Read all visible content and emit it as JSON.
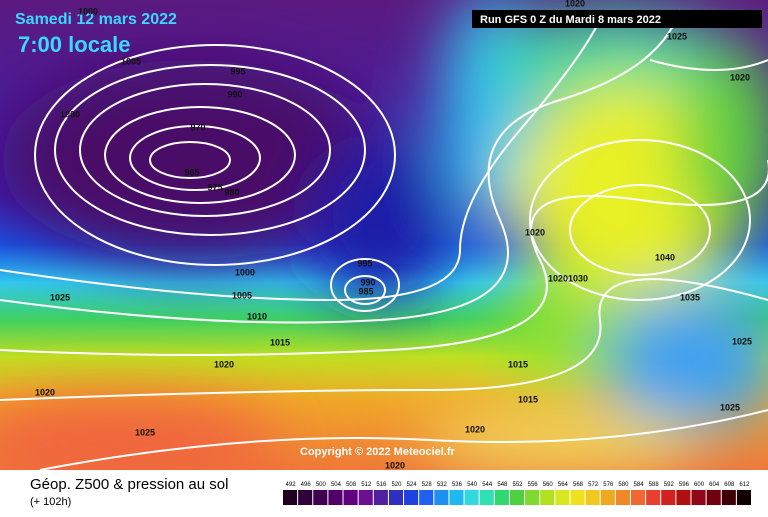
{
  "header": {
    "date": "Samedi 12 mars 2022",
    "time": "7:00 locale",
    "run": "Run GFS 0 Z du Mardi 8 mars 2022"
  },
  "copyright": "Copyright © 2022 Meteociel.fr",
  "footer": {
    "title": "Géop. Z500 & pression au sol",
    "lead": "(+ 102h)"
  },
  "legend": {
    "labels": [
      "492",
      "496",
      "500",
      "504",
      "508",
      "512",
      "516",
      "520",
      "524",
      "528",
      "532",
      "536",
      "540",
      "544",
      "548",
      "552",
      "556",
      "560",
      "564",
      "568",
      "572",
      "576",
      "580",
      "584",
      "588",
      "592",
      "596",
      "600",
      "604",
      "608",
      "612"
    ]
  },
  "isobars": {
    "labels": [
      "1000",
      "1005",
      "1000",
      "995",
      "990",
      "970",
      "965",
      "975",
      "980",
      "1000",
      "1005",
      "1010",
      "1015",
      "1020",
      "1020",
      "1025",
      "1025",
      "995",
      "990",
      "985",
      "1020",
      "1020",
      "1030",
      "1040",
      "1035",
      "1025",
      "1025",
      "1015",
      "1015",
      "1020",
      "1020",
      "1025",
      "1020",
      "1020"
    ]
  }
}
